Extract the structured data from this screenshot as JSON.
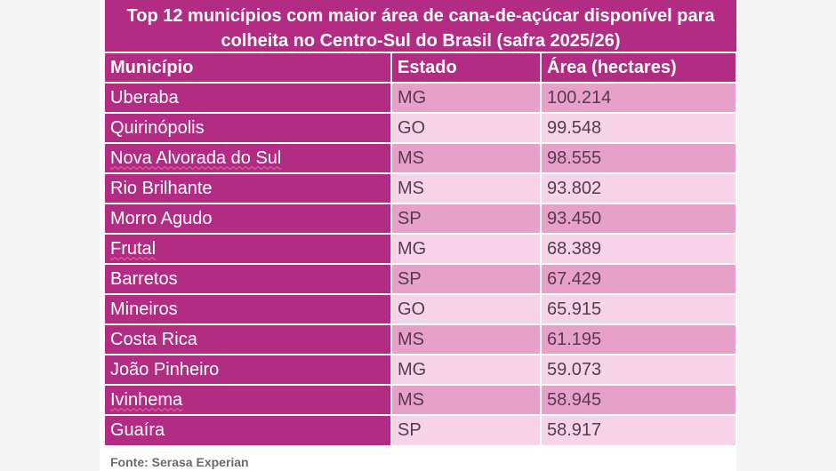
{
  "title": "Top 12 municípios com maior área de cana-de-açúcar disponível para colheita no Centro-Sul do Brasil (safra 2025/26)",
  "headers": {
    "municipio": "Município",
    "estado": "Estado",
    "area": "Área (hectares)"
  },
  "rows": [
    {
      "municipio": "Uberaba",
      "estado": "MG",
      "area": "100.214"
    },
    {
      "municipio": "Quirinópolis",
      "estado": "GO",
      "area": "99.548"
    },
    {
      "municipio": "Nova Alvorada do Sul",
      "estado": "MS",
      "area": "98.555"
    },
    {
      "municipio": "Rio Brilhante",
      "estado": "MS",
      "area": "93.802"
    },
    {
      "municipio": "Morro Agudo",
      "estado": "SP",
      "area": "93.450"
    },
    {
      "municipio": "Frutal",
      "estado": "MG",
      "area": "68.389"
    },
    {
      "municipio": "Barretos",
      "estado": "SP",
      "area": "67.429"
    },
    {
      "municipio": "Mineiros",
      "estado": "GO",
      "area": "65.915"
    },
    {
      "municipio": "Costa Rica",
      "estado": "MS",
      "area": "61.195"
    },
    {
      "municipio": "João Pinheiro",
      "estado": "MG",
      "area": "59.073"
    },
    {
      "municipio": "Ivinhema",
      "estado": "MS",
      "area": "58.945"
    },
    {
      "municipio": "Guaíra",
      "estado": "SP",
      "area": "58.917"
    }
  ],
  "source": "Fonte: Serasa Experian",
  "colors": {
    "header": "#b22c83",
    "row_odd": "#e7a1c8",
    "row_even": "#f6d3e6"
  }
}
